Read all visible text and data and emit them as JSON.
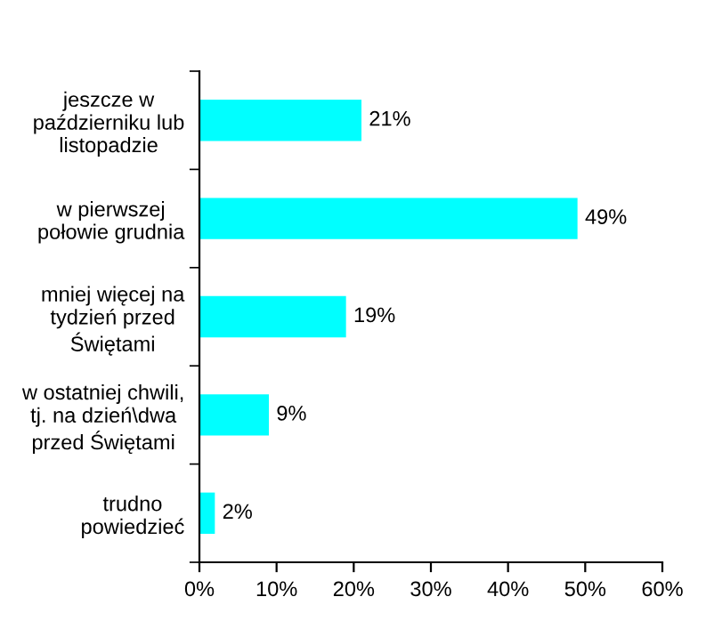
{
  "chart_data": {
    "type": "bar",
    "orientation": "horizontal",
    "categories": [
      "jeszcze w\npaździerniku lub\nlistopadzie",
      "w pierwszej\npołowie grudnia",
      "mniej więcej na\ntydzień przed\nŚwiętami",
      "w ostatniej chwili,\ntj. na dzień\\dwa\nprzed Świętami",
      "trudno\npowiedzieć"
    ],
    "values": [
      21,
      49,
      19,
      9,
      2
    ],
    "value_labels": [
      "21%",
      "49%",
      "19%",
      "9%",
      "2%"
    ],
    "color": "#00ffff",
    "xlim": [
      0,
      60
    ],
    "xticks": [
      {
        "value": 0,
        "label": "0%"
      },
      {
        "value": 10,
        "label": "10%"
      },
      {
        "value": 20,
        "label": "20%"
      },
      {
        "value": 30,
        "label": "30%"
      },
      {
        "value": 40,
        "label": "40%"
      },
      {
        "value": 50,
        "label": "50%"
      },
      {
        "value": 60,
        "label": "60%"
      }
    ],
    "grid": false
  }
}
